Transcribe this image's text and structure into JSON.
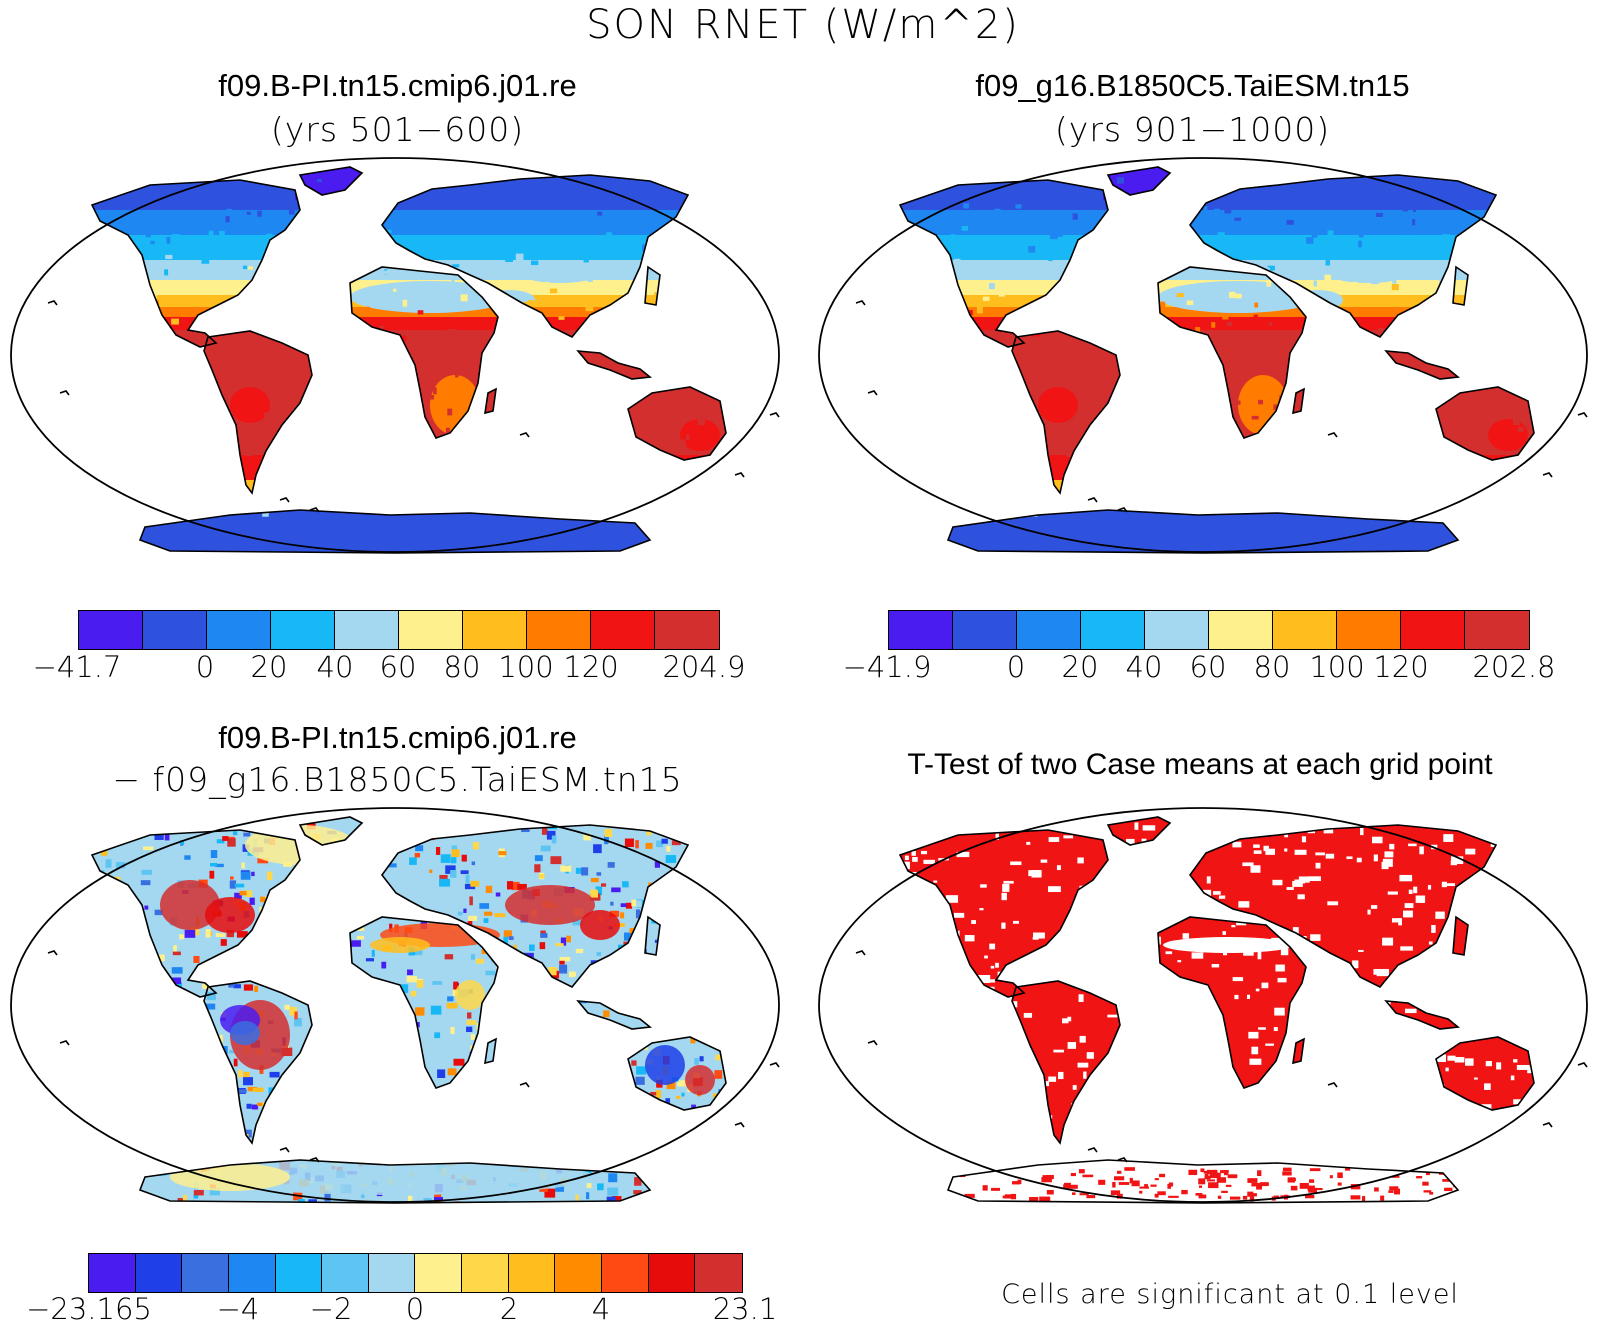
{
  "figure": {
    "title": "SON RNET (W/m^2)"
  },
  "panels": [
    {
      "title": "f09.B-PI.tn15.cmip6.j01.re",
      "subtitle": "(yrs 501−600)",
      "colorbar": {
        "colors": [
          "#4B1CF0",
          "#2F52DE",
          "#1F87F2",
          "#17B8F5",
          "#A4D8F0",
          "#FFF08E",
          "#FFBE1E",
          "#FF7C00",
          "#F01414",
          "#D32F2F"
        ],
        "tick_labels": [
          "−41.7",
          "0",
          "20",
          "40",
          "60",
          "80",
          "100",
          "120",
          "204.9"
        ]
      }
    },
    {
      "title": "f09_g16.B1850C5.TaiESM.tn15",
      "subtitle": "(yrs 901−1000)",
      "colorbar": {
        "colors": [
          "#4B1CF0",
          "#2F52DE",
          "#1F87F2",
          "#17B8F5",
          "#A4D8F0",
          "#FFF08E",
          "#FFBE1E",
          "#FF7C00",
          "#F01414",
          "#D32F2F"
        ],
        "tick_labels": [
          "−41.9",
          "0",
          "20",
          "40",
          "60",
          "80",
          "100",
          "120",
          "202.8"
        ]
      }
    },
    {
      "title": "f09.B-PI.tn15.cmip6.j01.re",
      "subtitle": "− f09_g16.B1850C5.TaiESM.tn15",
      "colorbar": {
        "colors": [
          "#4B1CF0",
          "#1F3FE8",
          "#3A6FE0",
          "#1F87F2",
          "#17B8F5",
          "#5EC4F2",
          "#A4D8F0",
          "#FFF08E",
          "#FFD84A",
          "#FFBE1E",
          "#FF8C00",
          "#FF4A14",
          "#E60C0C",
          "#D32F2F"
        ],
        "tick_labels": [
          "−23.165",
          "−4",
          "−2",
          "0",
          "2",
          "4",
          "23.1"
        ]
      }
    },
    {
      "title": "T-Test of two Case means at each grid point",
      "note": "Cells are significant at 0.1 level"
    }
  ]
}
